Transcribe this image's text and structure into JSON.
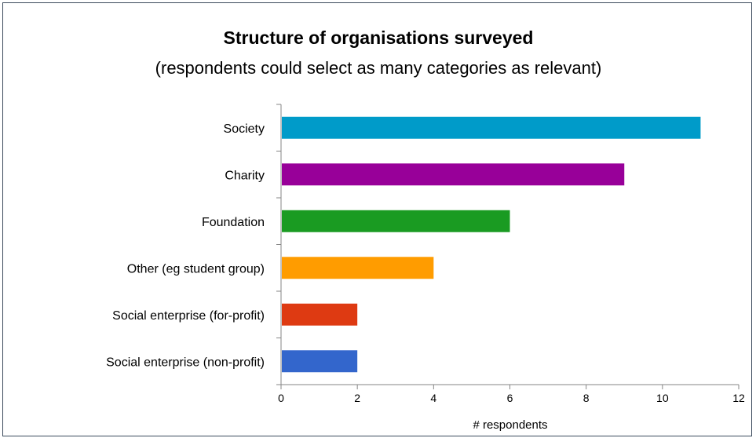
{
  "chart_data": {
    "type": "bar",
    "orientation": "horizontal",
    "title": "Structure of organisations surveyed",
    "subtitle": "(respondents could select as many categories as relevant)",
    "xlabel": "# respondents",
    "ylabel": "",
    "xlim": [
      0,
      12
    ],
    "xticks": [
      "0",
      "2",
      "4",
      "6",
      "8",
      "10",
      "12"
    ],
    "grid": false,
    "legend": "none",
    "categories": [
      "Society",
      "Charity",
      "Foundation",
      "Other (eg student group)",
      "Social enterprise (for-profit)",
      "Social enterprise (non-profit)"
    ],
    "values": [
      11,
      9,
      6,
      4,
      2,
      2
    ],
    "colors": [
      "#009bc9",
      "#980099",
      "#1a9b22",
      "#ff9c00",
      "#de3a12",
      "#3366cc"
    ]
  }
}
